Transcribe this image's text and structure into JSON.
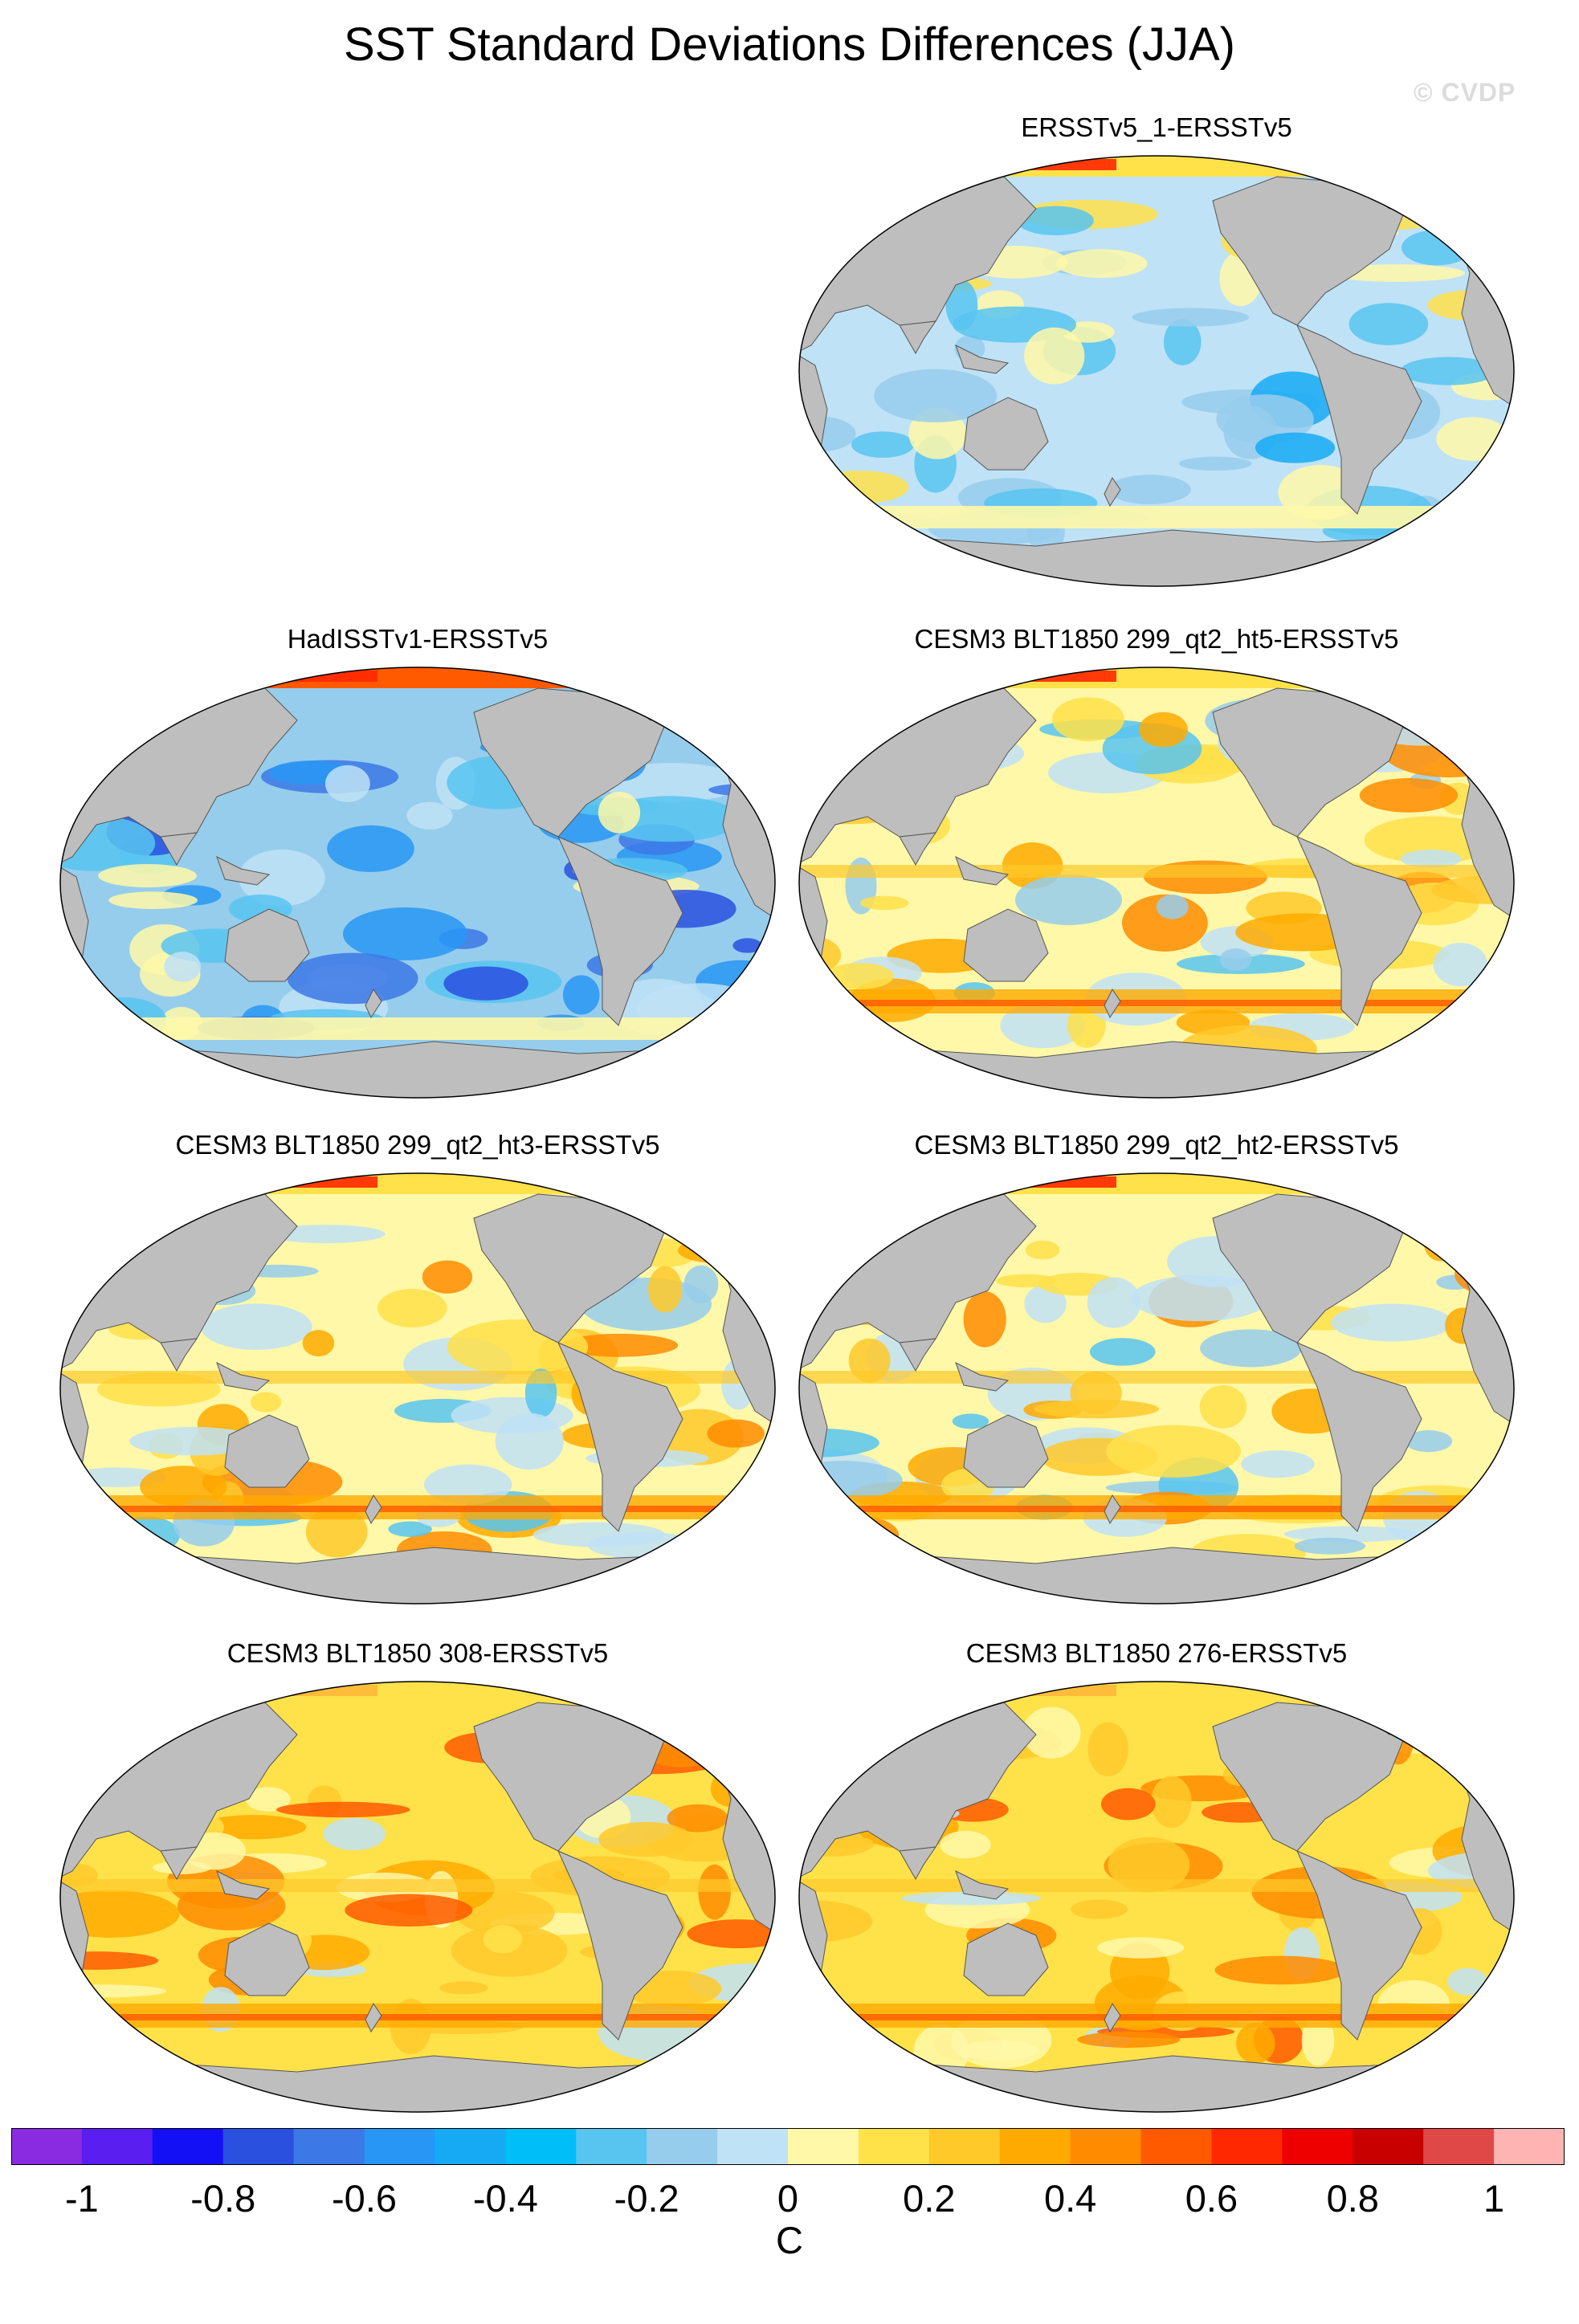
{
  "title": "SST Standard Deviations Differences (JJA)",
  "watermark": "© CVDP",
  "panels": [
    {
      "title": "ERSSTv5_1-ERSSTv5",
      "style": "negative"
    },
    {
      "title": "HadISSTv1-ERSSTv5",
      "style": "strong-negative"
    },
    {
      "title": "CESM3 BLT1850 299_qt2_ht5-ERSSTv5",
      "style": "mixed"
    },
    {
      "title": "CESM3 BLT1850 299_qt2_ht3-ERSSTv5",
      "style": "mixed"
    },
    {
      "title": "CESM3 BLT1850 299_qt2_ht2-ERSSTv5",
      "style": "mixed"
    },
    {
      "title": "CESM3 BLT1850 308-ERSSTv5",
      "style": "positive"
    },
    {
      "title": "CESM3 BLT1850 276-ERSSTv5",
      "style": "positive"
    }
  ],
  "colorbar": {
    "units": "C",
    "colors": [
      "#8a2be2",
      "#5a1ef0",
      "#1410f5",
      "#2a50e0",
      "#3c78e6",
      "#2896f5",
      "#16aaf5",
      "#00bef8",
      "#58c4f0",
      "#96cdec",
      "#bfe2f6",
      "#fff8a8",
      "#ffe14a",
      "#ffc92a",
      "#ffaa00",
      "#ff8c00",
      "#ff5a00",
      "#ff2800",
      "#ee0000",
      "#c80000",
      "#e04848",
      "#ffb4b4"
    ],
    "tick_labels": [
      "-1",
      "-0.8",
      "-0.6",
      "-0.4",
      "-0.2",
      "0",
      "0.2",
      "0.4",
      "0.6",
      "0.8",
      "1"
    ]
  }
}
